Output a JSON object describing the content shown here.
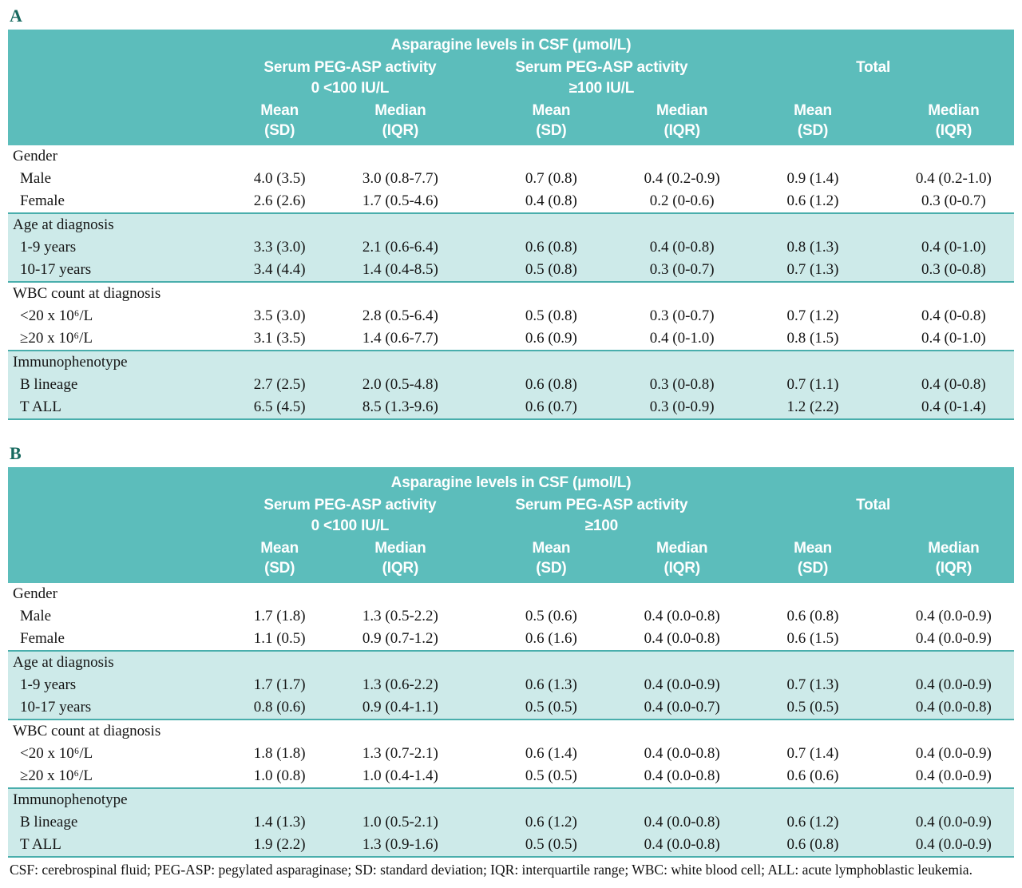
{
  "colors": {
    "header_bg": "#5cbdbb",
    "band_bg": "#cdeae9",
    "rule": "#49aeac",
    "panel_label": "#17695f",
    "header_text": "#ffffff"
  },
  "footnote": "CSF: cerebrospinal fluid; PEG-ASP: pegylated asparaginase; SD: standard deviation; IQR: interquartile range; WBC: white blood cell; ALL: acute lymphoblastic leukemia.",
  "tables": [
    {
      "panel": "A",
      "title": "Asparagine levels in CSF (μmol/L)",
      "groups": [
        {
          "line1": "Serum PEG-ASP activity",
          "line2": "0 <100 IU/L"
        },
        {
          "line1": "Serum PEG-ASP activity",
          "line2": "≥100 IU/L"
        },
        {
          "line1": "Total",
          "line2": ""
        }
      ],
      "columns": [
        {
          "line1": "Mean",
          "line2": "(SD)"
        },
        {
          "line1": "Median",
          "line2": "(IQR)"
        },
        {
          "line1": "Mean",
          "line2": "(SD)"
        },
        {
          "line1": "Median",
          "line2": "(IQR)"
        },
        {
          "line1": "Mean",
          "line2": "(SD)"
        },
        {
          "line1": "Median",
          "line2": "(IQR)"
        }
      ],
      "sections": [
        {
          "label": "Gender",
          "shaded": false,
          "rows": [
            {
              "label": "Male",
              "values": [
                "4.0 (3.5)",
                "3.0 (0.8-7.7)",
                "0.7 (0.8)",
                "0.4 (0.2-0.9)",
                "0.9 (1.4)",
                "0.4 (0.2-1.0)"
              ]
            },
            {
              "label": "Female",
              "values": [
                "2.6 (2.6)",
                "1.7 (0.5-4.6)",
                "0.4 (0.8)",
                "0.2 (0-0.6)",
                "0.6 (1.2)",
                "0.3 (0-0.7)"
              ]
            }
          ]
        },
        {
          "label": "Age at diagnosis",
          "shaded": true,
          "rows": [
            {
              "label": "1-9 years",
              "values": [
                "3.3 (3.0)",
                "2.1 (0.6-6.4)",
                "0.6 (0.8)",
                "0.4 (0-0.8)",
                "0.8 (1.3)",
                "0.4 (0-1.0)"
              ]
            },
            {
              "label": "10-17 years",
              "values": [
                "3.4 (4.4)",
                "1.4 (0.4-8.5)",
                "0.5 (0.8)",
                "0.3 (0-0.7)",
                "0.7 (1.3)",
                "0.3 (0-0.8)"
              ]
            }
          ]
        },
        {
          "label": "WBC count at diagnosis",
          "shaded": false,
          "rows": [
            {
              "label": "<20 x 10⁶/L",
              "values": [
                "3.5 (3.0)",
                "2.8 (0.5-6.4)",
                "0.5 (0.8)",
                "0.3 (0-0.7)",
                "0.7 (1.2)",
                "0.4 (0-0.8)"
              ]
            },
            {
              "label": "≥20 x 10⁶/L",
              "values": [
                "3.1 (3.5)",
                "1.4 (0.6-7.7)",
                "0.6 (0.9)",
                "0.4 (0-1.0)",
                "0.8 (1.5)",
                "0.4 (0-1.0)"
              ]
            }
          ]
        },
        {
          "label": "Immunophenotype",
          "shaded": true,
          "rows": [
            {
              "label": "B lineage",
              "values": [
                "2.7 (2.5)",
                "2.0 (0.5-4.8)",
                "0.6 (0.8)",
                "0.3 (0-0.8)",
                "0.7 (1.1)",
                "0.4 (0-0.8)"
              ]
            },
            {
              "label": "T ALL",
              "values": [
                "6.5 (4.5)",
                "8.5 (1.3-9.6)",
                "0.6 (0.7)",
                "0.3 (0-0.9)",
                "1.2 (2.2)",
                "0.4 (0-1.4)"
              ]
            }
          ]
        }
      ]
    },
    {
      "panel": "B",
      "title": "Asparagine levels in CSF (μmol/L)",
      "groups": [
        {
          "line1": "Serum PEG-ASP activity",
          "line2": "0 <100 IU/L"
        },
        {
          "line1": "Serum PEG-ASP activity",
          "line2": "≥100"
        },
        {
          "line1": "Total",
          "line2": ""
        }
      ],
      "columns": [
        {
          "line1": "Mean",
          "line2": "(SD)"
        },
        {
          "line1": "Median",
          "line2": "(IQR)"
        },
        {
          "line1": "Mean",
          "line2": "(SD)"
        },
        {
          "line1": "Median",
          "line2": "(IQR)"
        },
        {
          "line1": "Mean",
          "line2": "(SD)"
        },
        {
          "line1": "Median",
          "line2": "(IQR)"
        }
      ],
      "sections": [
        {
          "label": "Gender",
          "shaded": false,
          "rows": [
            {
              "label": "Male",
              "values": [
                "1.7 (1.8)",
                "1.3 (0.5-2.2)",
                "0.5 (0.6)",
                "0.4 (0.0-0.8)",
                "0.6 (0.8)",
                "0.4 (0.0-0.9)"
              ]
            },
            {
              "label": "Female",
              "values": [
                "1.1 (0.5)",
                "0.9 (0.7-1.2)",
                "0.6 (1.6)",
                "0.4 (0.0-0.8)",
                "0.6 (1.5)",
                "0.4 (0.0-0.9)"
              ]
            }
          ]
        },
        {
          "label": "Age at diagnosis",
          "shaded": true,
          "rows": [
            {
              "label": "1-9 years",
              "values": [
                "1.7 (1.7)",
                "1.3 (0.6-2.2)",
                "0.6 (1.3)",
                "0.4 (0.0-0.9)",
                "0.7 (1.3)",
                "0.4 (0.0-0.9)"
              ]
            },
            {
              "label": "10-17 years",
              "values": [
                "0.8 (0.6)",
                "0.9 (0.4-1.1)",
                "0.5 (0.5)",
                "0.4 (0.0-0.7)",
                "0.5 (0.5)",
                "0.4 (0.0-0.8)"
              ]
            }
          ]
        },
        {
          "label": "WBC count at diagnosis",
          "shaded": false,
          "rows": [
            {
              "label": "<20 x 10⁶/L",
              "values": [
                "1.8 (1.8)",
                "1.3 (0.7-2.1)",
                "0.6 (1.4)",
                "0.4 (0.0-0.8)",
                "0.7 (1.4)",
                "0.4 (0.0-0.9)"
              ]
            },
            {
              "label": "≥20 x 10⁶/L",
              "values": [
                "1.0 (0.8)",
                "1.0 (0.4-1.4)",
                "0.5 (0.5)",
                "0.4 (0.0-0.8)",
                "0.6 (0.6)",
                "0.4 (0.0-0.9)"
              ]
            }
          ]
        },
        {
          "label": "Immunophenotype",
          "shaded": true,
          "rows": [
            {
              "label": "B lineage",
              "values": [
                "1.4 (1.3)",
                "1.0 (0.5-2.1)",
                "0.6 (1.2)",
                "0.4 (0.0-0.8)",
                "0.6 (1.2)",
                "0.4 (0.0-0.9)"
              ]
            },
            {
              "label": "T ALL",
              "values": [
                "1.9 (2.2)",
                "1.3 (0.9-1.6)",
                "0.5 (0.5)",
                "0.4 (0.0-0.8)",
                "0.6 (0.8)",
                "0.4 (0.0-0.9)"
              ]
            }
          ]
        }
      ]
    }
  ]
}
